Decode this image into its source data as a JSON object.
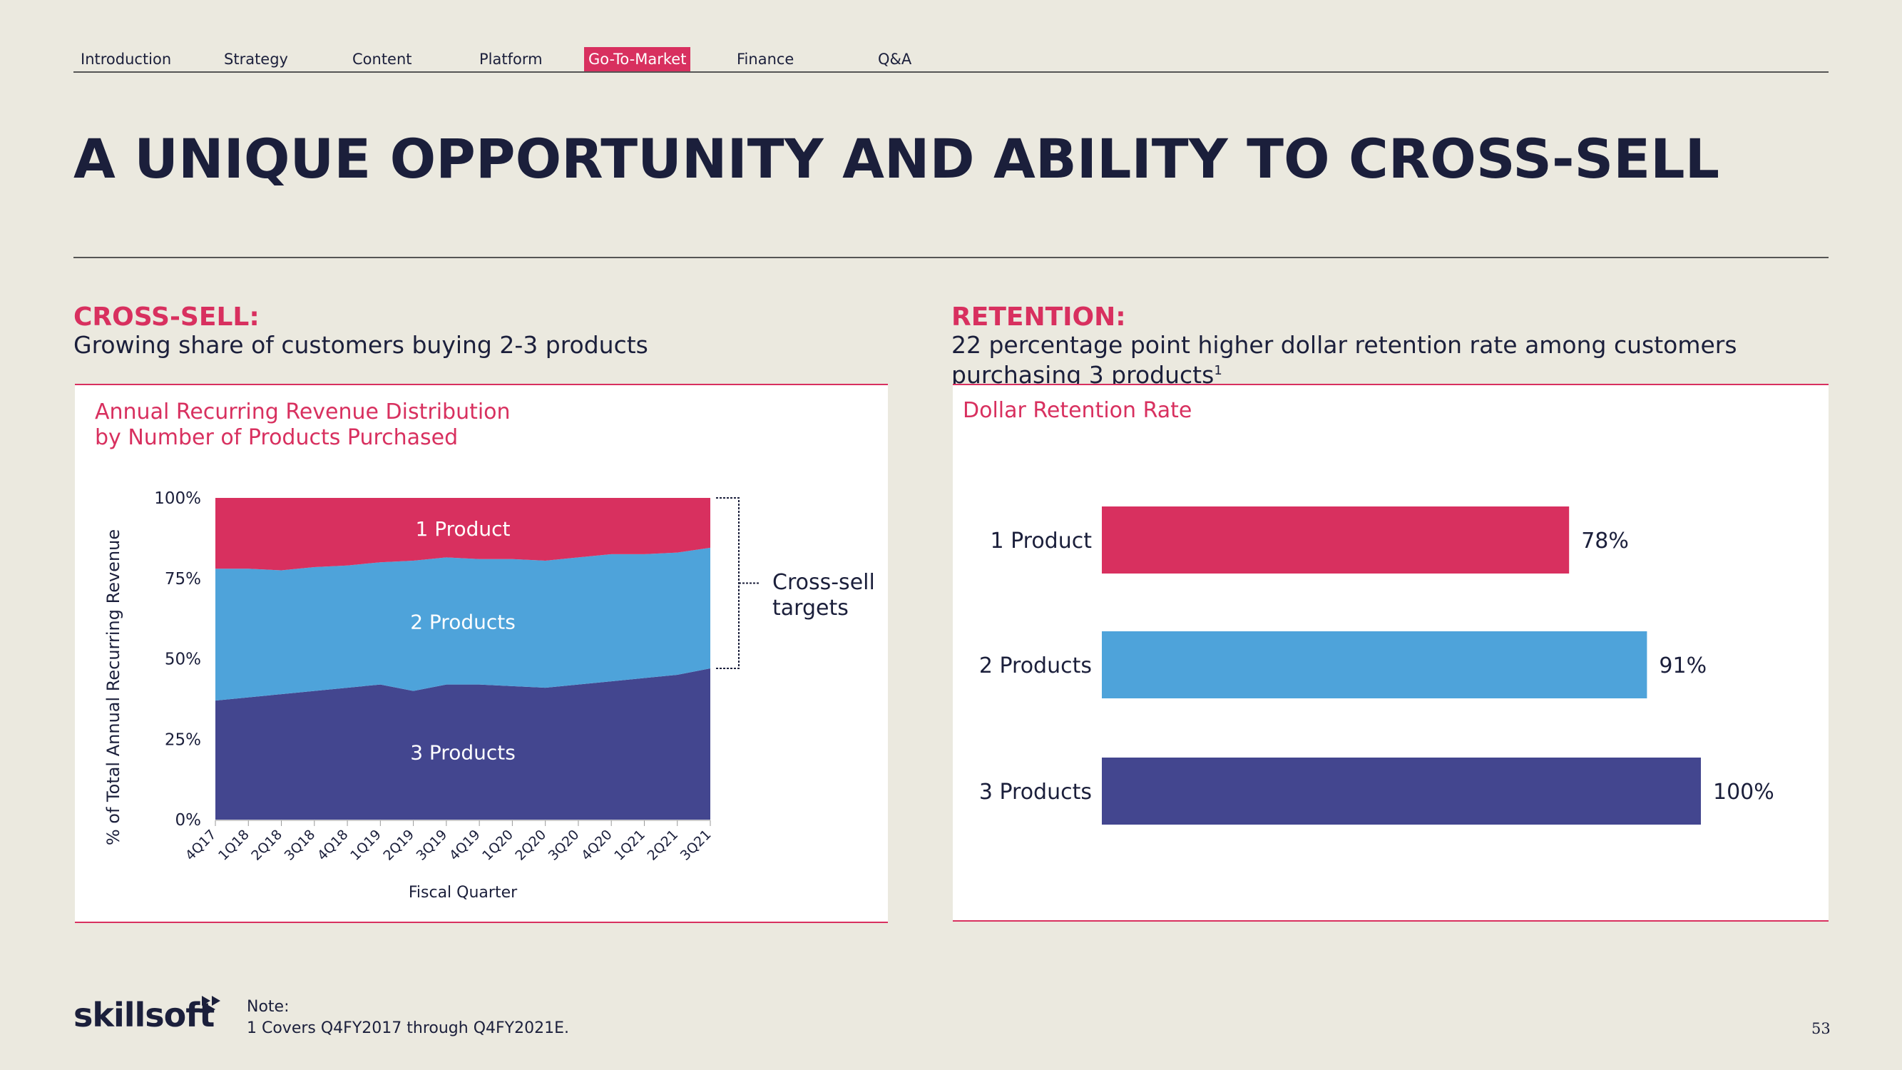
{
  "nav": {
    "items": [
      {
        "label": "Introduction"
      },
      {
        "label": "Strategy"
      },
      {
        "label": "Content"
      },
      {
        "label": "Platform"
      },
      {
        "label": "Go-To-Market",
        "active": true
      },
      {
        "label": "Finance"
      },
      {
        "label": "Q&A"
      }
    ]
  },
  "title": "A UNIQUE OPPORTUNITY AND ABILITY TO CROSS-SELL",
  "left": {
    "heading": "CROSS-SELL:",
    "subheading": "Growing share of customers buying 2-3 products",
    "chart_title_line1": "Annual Recurring Revenue Distribution",
    "chart_title_line2": "by Number of Products Purchased",
    "bracket_label_line1": "Cross-sell",
    "bracket_label_line2": "targets"
  },
  "right": {
    "heading": "RETENTION:",
    "subheading_line1": "22 percentage point higher dollar retention rate among customers",
    "subheading_line2": "purchasing 3 products",
    "subheading_sup": "1",
    "chart_title": "Dollar Retention Rate"
  },
  "footer": {
    "logo": "skillsoft",
    "note_label": "Note:",
    "note_text": "1 Covers Q4FY2017 through Q4FY2021E.",
    "page_number": "53"
  },
  "colors": {
    "one_product": "#d8305f",
    "two_products": "#4ea3da",
    "three_products": "#43468f",
    "accent": "#d8305f",
    "navy": "#1b1f3b"
  },
  "chart_data": [
    {
      "type": "area",
      "stacked": true,
      "percent": true,
      "xlabel": "Fiscal Quarter",
      "ylabel": "% of Total Annual Recurring Revenue",
      "yticks": [
        "0%",
        "25%",
        "50%",
        "75%",
        "100%"
      ],
      "ylim": [
        0,
        100
      ],
      "categories": [
        "4Q17",
        "1Q18",
        "2Q18",
        "3Q18",
        "4Q18",
        "1Q19",
        "2Q19",
        "3Q19",
        "4Q19",
        "1Q20",
        "2Q20",
        "3Q20",
        "4Q20",
        "1Q21",
        "2Q21",
        "3Q21"
      ],
      "series": [
        {
          "name": "3 Products",
          "color": "#43468f",
          "values": [
            37,
            38,
            39,
            40,
            41,
            42,
            40,
            42,
            42,
            41.5,
            41,
            42,
            43,
            44,
            45,
            47
          ]
        },
        {
          "name": "2 Products",
          "color": "#4ea3da",
          "values": [
            41,
            40,
            38.5,
            38.5,
            38,
            38,
            40.5,
            39.5,
            39,
            39.5,
            39.5,
            39.5,
            39.5,
            38.5,
            38,
            37.5
          ]
        },
        {
          "name": "1 Product",
          "color": "#d8305f",
          "values": [
            22,
            22,
            22.5,
            21.5,
            21,
            20,
            19.5,
            18.5,
            19,
            19,
            19.5,
            18.5,
            17.5,
            17.5,
            17,
            15.5
          ]
        }
      ],
      "legend": "inline labels"
    },
    {
      "type": "bar",
      "orientation": "horizontal",
      "title": "Dollar Retention Rate",
      "categories": [
        "1 Product",
        "2 Products",
        "3 Products"
      ],
      "values": [
        78,
        91,
        100
      ],
      "value_labels": [
        "78%",
        "91%",
        "100%"
      ],
      "colors": [
        "#d8305f",
        "#4ea3da",
        "#43468f"
      ]
    }
  ]
}
